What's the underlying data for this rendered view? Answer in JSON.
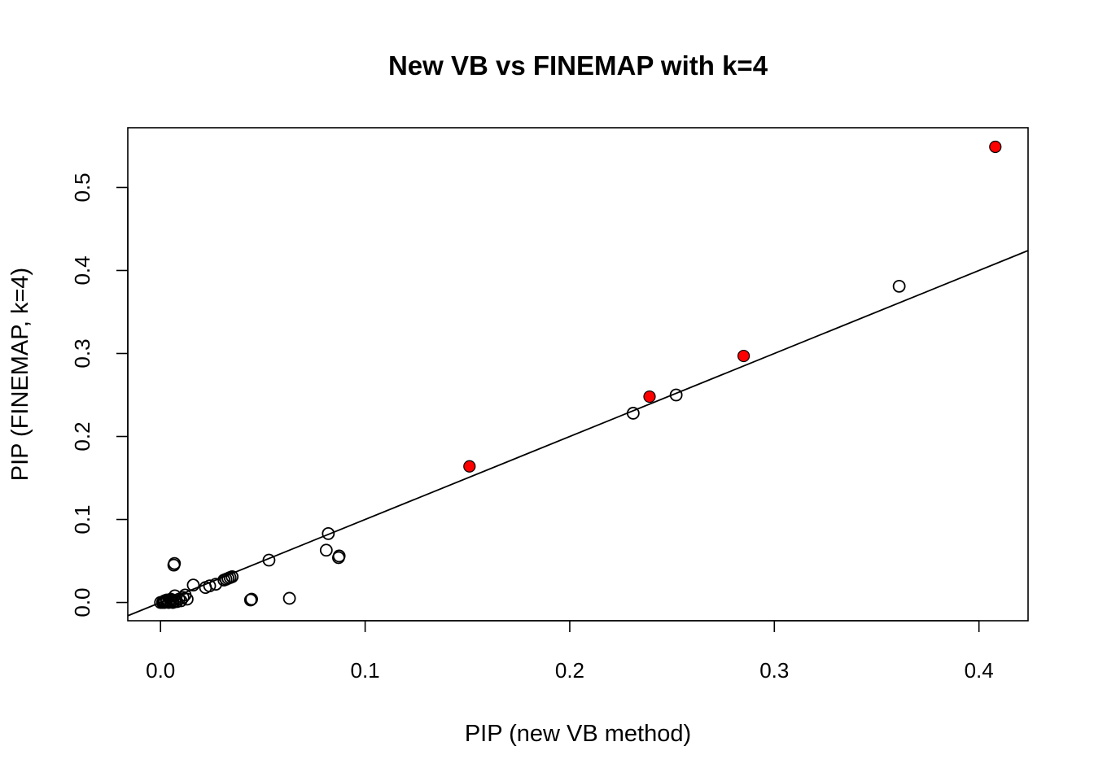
{
  "chart_data": {
    "type": "scatter",
    "title": "New VB vs FINEMAP with k=4",
    "xlabel": "PIP (new VB method)",
    "ylabel": "PIP (FINEMAP, k=4)",
    "xlim": [
      -0.016,
      0.424
    ],
    "ylim": [
      -0.022,
      0.572
    ],
    "xticks": [
      "0.0",
      "0.1",
      "0.2",
      "0.3",
      "0.4"
    ],
    "yticks": [
      "0.0",
      "0.1",
      "0.2",
      "0.3",
      "0.4",
      "0.5"
    ],
    "reference_line": {
      "slope": 1,
      "intercept": 0,
      "color": "#000000"
    },
    "series": [
      {
        "marker": "open-circle",
        "color": "#000000",
        "points": [
          [
            0.0,
            0.0
          ],
          [
            0.001,
            0.0
          ],
          [
            0.0015,
            0.001
          ],
          [
            0.002,
            0.0
          ],
          [
            0.002,
            0.002
          ],
          [
            0.003,
            0.001
          ],
          [
            0.003,
            0.003
          ],
          [
            0.004,
            0.0
          ],
          [
            0.004,
            0.002
          ],
          [
            0.005,
            0.001
          ],
          [
            0.005,
            0.004
          ],
          [
            0.006,
            0.0
          ],
          [
            0.006,
            0.003
          ],
          [
            0.007,
            0.002
          ],
          [
            0.007,
            0.008
          ],
          [
            0.008,
            0.001
          ],
          [
            0.009,
            0.004
          ],
          [
            0.01,
            0.002
          ],
          [
            0.011,
            0.006
          ],
          [
            0.012,
            0.009
          ],
          [
            0.013,
            0.004
          ],
          [
            0.0065,
            0.045
          ],
          [
            0.0068,
            0.047
          ],
          [
            0.016,
            0.021
          ],
          [
            0.022,
            0.018
          ],
          [
            0.024,
            0.02
          ],
          [
            0.027,
            0.022
          ],
          [
            0.031,
            0.027
          ],
          [
            0.032,
            0.028
          ],
          [
            0.033,
            0.029
          ],
          [
            0.034,
            0.03
          ],
          [
            0.035,
            0.031
          ],
          [
            0.044,
            0.003
          ],
          [
            0.0445,
            0.004
          ],
          [
            0.053,
            0.051
          ],
          [
            0.063,
            0.005
          ],
          [
            0.081,
            0.063
          ],
          [
            0.082,
            0.083
          ],
          [
            0.087,
            0.054
          ],
          [
            0.0873,
            0.056
          ],
          [
            0.231,
            0.228
          ],
          [
            0.252,
            0.25
          ],
          [
            0.361,
            0.381
          ]
        ]
      },
      {
        "marker": "filled-circle",
        "color": "#ff0000",
        "points": [
          [
            0.151,
            0.164
          ],
          [
            0.239,
            0.248
          ],
          [
            0.285,
            0.297
          ],
          [
            0.408,
            0.549
          ]
        ]
      }
    ]
  }
}
